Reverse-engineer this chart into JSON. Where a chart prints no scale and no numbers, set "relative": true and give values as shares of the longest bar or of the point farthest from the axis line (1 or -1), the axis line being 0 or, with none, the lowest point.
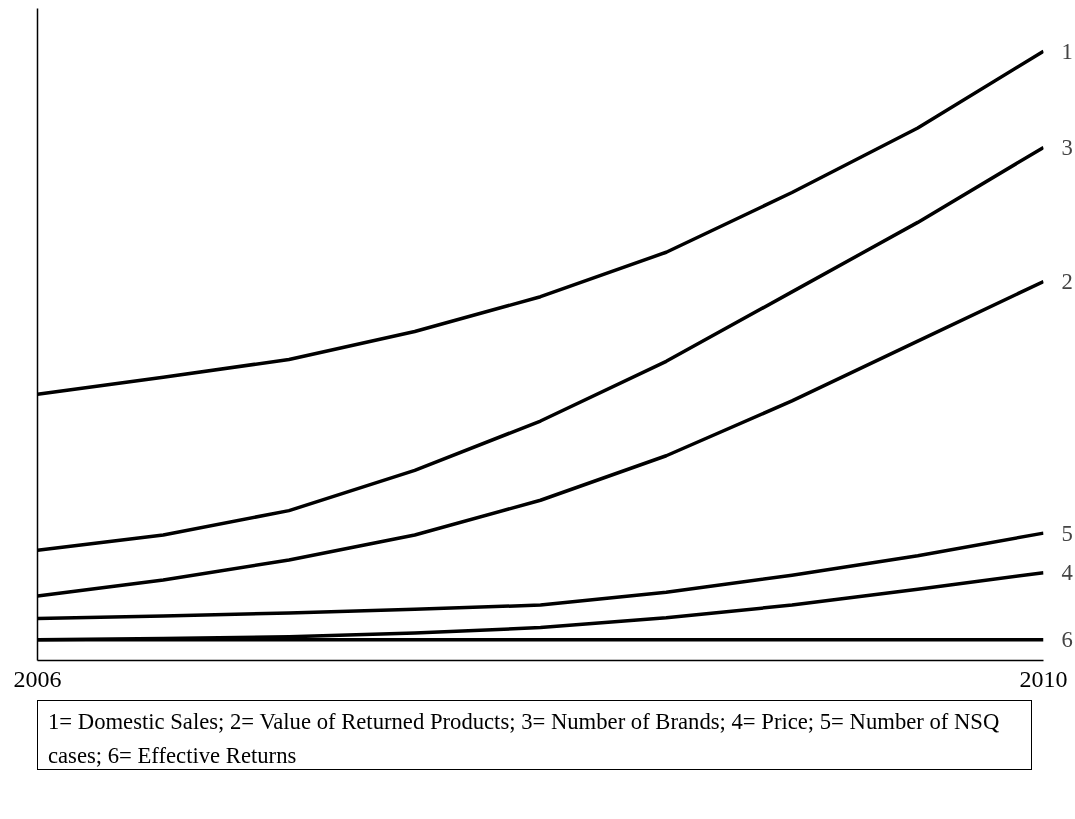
{
  "chart_data": {
    "type": "line",
    "relative": true,
    "tick_labels": "x",
    "grid": false,
    "line_style": "solid",
    "x": [
      2006,
      2006.5,
      2007,
      2007.5,
      2008,
      2008.5,
      2009,
      2009.5,
      2010
    ],
    "xlim": [
      2006,
      2010
    ],
    "xticks": [
      2006,
      2010
    ],
    "series": [
      {
        "name": "1",
        "color": "#000000",
        "values": [
          0.437,
          0.465,
          0.494,
          0.54,
          0.597,
          0.67,
          0.768,
          0.874,
          1
        ]
      },
      {
        "name": "3",
        "color": "#000000",
        "values": [
          0.181,
          0.206,
          0.246,
          0.312,
          0.393,
          0.491,
          0.605,
          0.719,
          0.842
        ]
      },
      {
        "name": "2",
        "color": "#000000",
        "values": [
          0.106,
          0.132,
          0.165,
          0.206,
          0.263,
          0.336,
          0.426,
          0.524,
          0.622
        ]
      },
      {
        "name": "5",
        "color": "#000000",
        "values": [
          0.069,
          0.073,
          0.078,
          0.084,
          0.091,
          0.112,
          0.14,
          0.172,
          0.209
        ]
      },
      {
        "name": "4",
        "color": "#000000",
        "values": [
          0.034,
          0.036,
          0.039,
          0.045,
          0.054,
          0.07,
          0.091,
          0.117,
          0.144
        ]
      },
      {
        "name": "6",
        "color": "#000000",
        "values": [
          0.034,
          0.034,
          0.034,
          0.034,
          0.034,
          0.034,
          0.034,
          0.034,
          0.034
        ]
      }
    ],
    "annotations": [
      "1= Domestic Sales; 2= Value of Returned Products; 3= Number of Brands; 4= Price; 5= Number of NSQ cases; 6= Effective Returns"
    ]
  }
}
